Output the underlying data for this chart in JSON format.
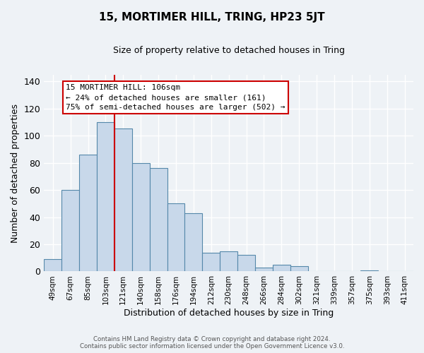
{
  "title": "15, MORTIMER HILL, TRING, HP23 5JT",
  "subtitle": "Size of property relative to detached houses in Tring",
  "xlabel": "Distribution of detached houses by size in Tring",
  "ylabel": "Number of detached properties",
  "footer_line1": "Contains HM Land Registry data © Crown copyright and database right 2024.",
  "footer_line2": "Contains public sector information licensed under the Open Government Licence v3.0.",
  "bar_labels": [
    "49sqm",
    "67sqm",
    "85sqm",
    "103sqm",
    "121sqm",
    "140sqm",
    "158sqm",
    "176sqm",
    "194sqm",
    "212sqm",
    "230sqm",
    "248sqm",
    "266sqm",
    "284sqm",
    "302sqm",
    "321sqm",
    "339sqm",
    "357sqm",
    "375sqm",
    "393sqm",
    "411sqm"
  ],
  "bar_values": [
    9,
    60,
    86,
    110,
    105,
    80,
    76,
    50,
    43,
    14,
    15,
    12,
    3,
    5,
    4,
    0,
    0,
    0,
    1,
    0,
    0
  ],
  "bar_color": "#c8d8ea",
  "bar_edge_color": "#5588aa",
  "vline_color": "#cc0000",
  "annotation_title": "15 MORTIMER HILL: 106sqm",
  "annotation_line1": "← 24% of detached houses are smaller (161)",
  "annotation_line2": "75% of semi-detached houses are larger (502) →",
  "annotation_box_color": "#ffffff",
  "annotation_box_edge": "#cc0000",
  "ylim": [
    0,
    145
  ],
  "yticks": [
    0,
    20,
    40,
    60,
    80,
    100,
    120,
    140
  ],
  "background_color": "#eef2f6",
  "grid_color": "#ffffff"
}
